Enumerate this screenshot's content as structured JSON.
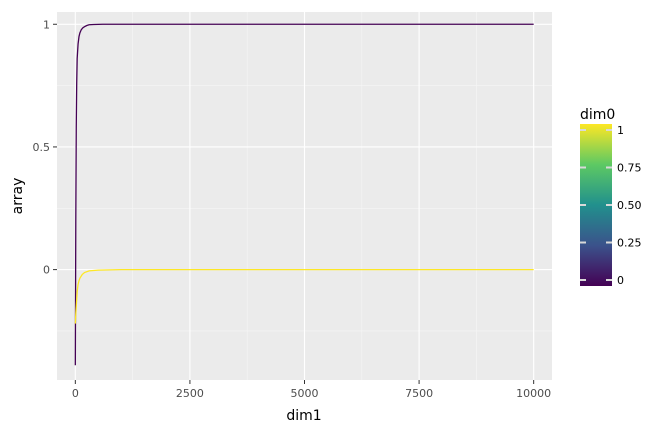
{
  "chart_data": {
    "type": "line",
    "title": "",
    "xlabel": "dim1",
    "ylabel": "array",
    "xlim": [
      -400,
      10400
    ],
    "ylim": [
      -0.45,
      1.05
    ],
    "xticks": [
      0,
      2500,
      5000,
      7500,
      10000
    ],
    "xtick_labels": [
      "0",
      "2500",
      "5000",
      "7500",
      "10000"
    ],
    "yticks": [
      0,
      0.5,
      1
    ],
    "ytick_labels": [
      "0",
      "0.5",
      "1"
    ],
    "grid": true,
    "legend": {
      "title": "dim0",
      "placement": "right",
      "type": "colorbar",
      "ticks": [
        0,
        0.25,
        0.5,
        0.75,
        1
      ],
      "tick_labels": [
        "0",
        "0.25",
        "0.50",
        "0.75",
        "1"
      ],
      "colors": [
        "#440154",
        "#3b528b",
        "#21908d",
        "#5dc963",
        "#fde725"
      ]
    },
    "series": [
      {
        "dim0": 0,
        "color": "#440154",
        "x": [
          0,
          10,
          20,
          30,
          40,
          60,
          80,
          100,
          130,
          160,
          200,
          250,
          300,
          400,
          600,
          1000,
          2500,
          5000,
          7500,
          10000
        ],
        "y": [
          -0.39,
          0.2,
          0.58,
          0.76,
          0.86,
          0.92,
          0.95,
          0.965,
          0.978,
          0.985,
          0.99,
          0.995,
          0.998,
          0.999,
          1,
          1,
          1,
          1,
          1,
          1
        ]
      },
      {
        "dim0": 1,
        "color": "#fde725",
        "x": [
          0,
          10,
          20,
          30,
          40,
          60,
          80,
          100,
          150,
          200,
          300,
          500,
          1000,
          2500,
          5000,
          7500,
          10000
        ],
        "y": [
          -0.22,
          -0.18,
          -0.15,
          -0.12,
          -0.09,
          -0.06,
          -0.045,
          -0.035,
          -0.02,
          -0.012,
          -0.005,
          -0.002,
          0,
          0,
          0,
          0,
          0
        ]
      }
    ]
  }
}
